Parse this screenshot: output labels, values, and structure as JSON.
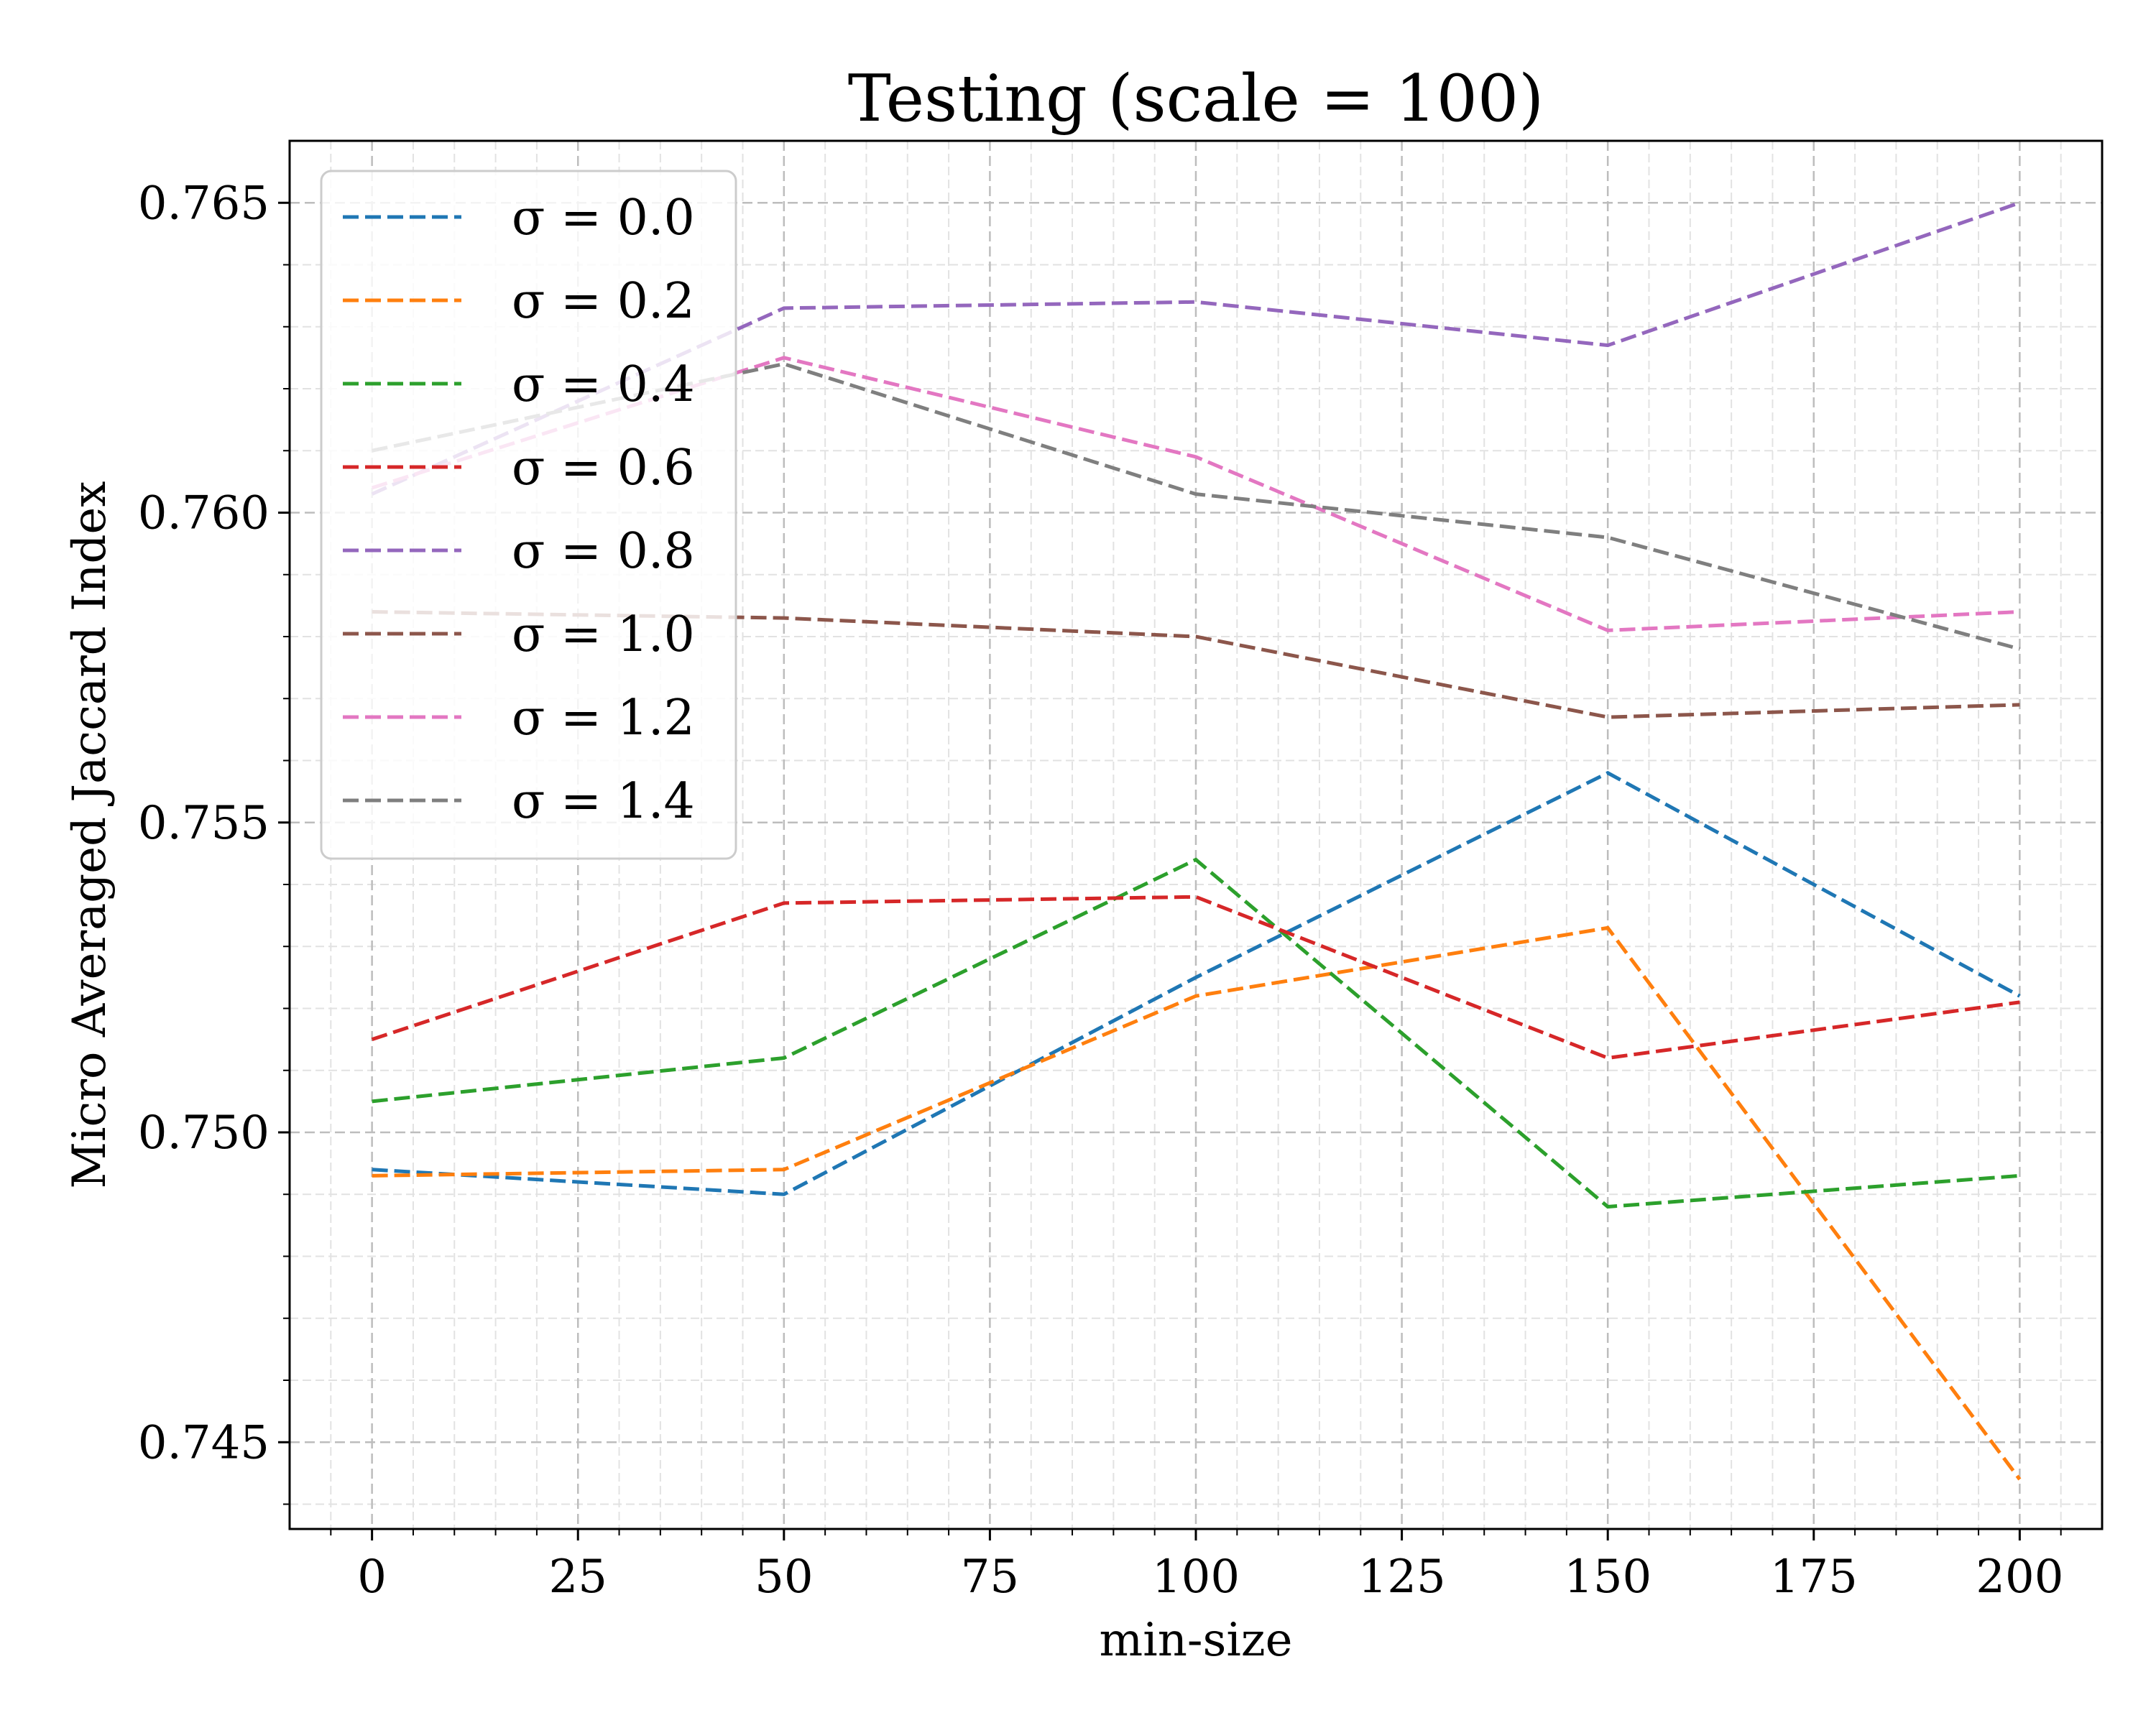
{
  "chart_data": {
    "type": "line",
    "title": "Testing (scale = 100)",
    "xlabel": "min-size",
    "ylabel": "Micro Averaged Jaccard Index",
    "x": [
      0,
      50,
      100,
      150,
      200
    ],
    "xlim": [
      -10,
      210
    ],
    "ylim": [
      0.7436,
      0.766
    ],
    "xticks": [
      0,
      25,
      50,
      75,
      100,
      125,
      150,
      175,
      200
    ],
    "yticks": [
      0.745,
      0.75,
      0.755,
      0.76,
      0.765
    ],
    "xtick_labels": [
      "0",
      "25",
      "50",
      "75",
      "100",
      "125",
      "150",
      "175",
      "200"
    ],
    "ytick_labels": [
      "0.745",
      "0.750",
      "0.755",
      "0.760",
      "0.765"
    ],
    "grid": true,
    "legend_position": "upper-left",
    "series": [
      {
        "name": "σ = 0.0",
        "color": "#1f77b4",
        "values": [
          0.7494,
          0.749,
          0.7525,
          0.7558,
          0.7522
        ]
      },
      {
        "name": "σ = 0.2",
        "color": "#ff7f0e",
        "values": [
          0.7493,
          0.7494,
          0.7522,
          0.7533,
          0.7444
        ]
      },
      {
        "name": "σ = 0.4",
        "color": "#2ca02c",
        "values": [
          0.7505,
          0.7512,
          0.7544,
          0.7488,
          0.7493
        ]
      },
      {
        "name": "σ = 0.6",
        "color": "#d62728",
        "values": [
          0.7515,
          0.7537,
          0.7538,
          0.7512,
          0.7521
        ]
      },
      {
        "name": "σ = 0.8",
        "color": "#9467bd",
        "values": [
          0.7603,
          0.7633,
          0.7634,
          0.7627,
          0.765
        ]
      },
      {
        "name": "σ = 1.0",
        "color": "#8c564b",
        "values": [
          0.7584,
          0.7583,
          0.758,
          0.7567,
          0.7569
        ]
      },
      {
        "name": "σ = 1.2",
        "color": "#e377c2",
        "values": [
          0.7604,
          0.7625,
          0.7609,
          0.7581,
          0.7584
        ]
      },
      {
        "name": "σ = 1.4",
        "color": "#7f7f7f",
        "values": [
          0.761,
          0.7624,
          0.7603,
          0.7596,
          0.7578
        ]
      }
    ]
  }
}
